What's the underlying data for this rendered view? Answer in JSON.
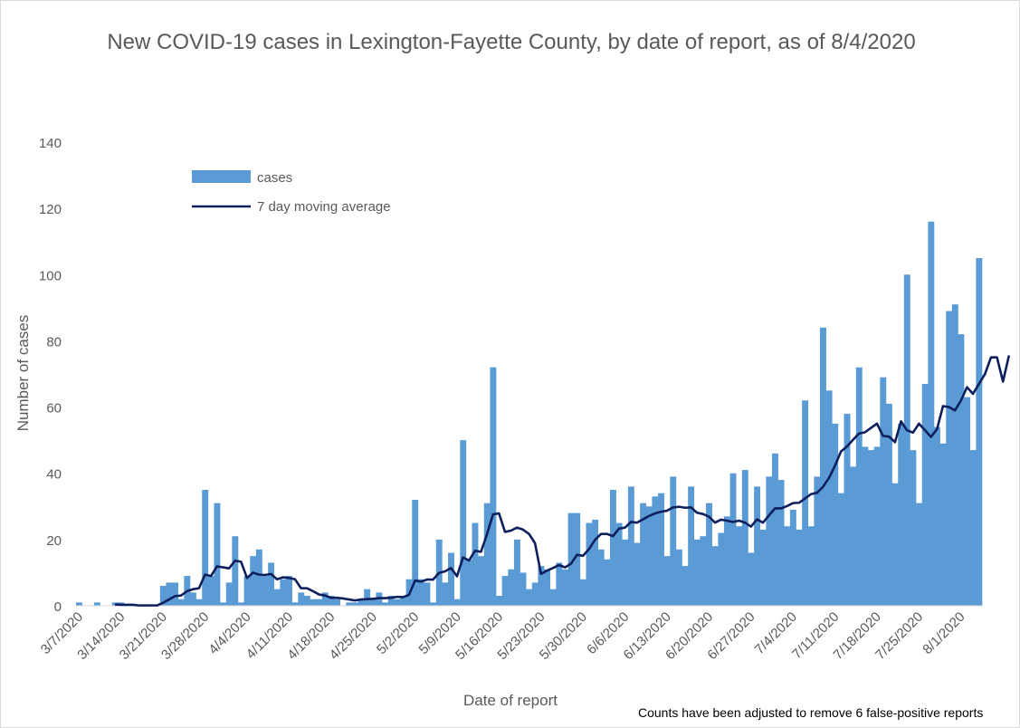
{
  "colors": {
    "bars": "#5b9bd5",
    "average": "#0d1f5c",
    "text": "#595959"
  },
  "chart_data": {
    "type": "bar",
    "title": "New COVID-19 cases in Lexington-Fayette County, by date of report, as of 8/4/2020",
    "xlabel": "Date of report",
    "ylabel": "Number of cases",
    "note": "Counts have been adjusted to remove 6 false-positive reports",
    "ylim": [
      0,
      140
    ],
    "yticks": [
      0,
      20,
      40,
      60,
      80,
      100,
      120,
      140
    ],
    "x_start": "3/7/2020",
    "xtick_labels": [
      "3/7/2020",
      "3/14/2020",
      "3/21/2020",
      "3/28/2020",
      "4/4/2020",
      "4/11/2020",
      "4/18/2020",
      "4/25/2020",
      "5/2/2020",
      "5/9/2020",
      "5/16/2020",
      "5/23/2020",
      "5/30/2020",
      "6/6/2020",
      "6/13/2020",
      "6/20/2020",
      "6/27/2020",
      "7/4/2020",
      "7/11/2020",
      "7/18/2020",
      "7/25/2020",
      "8/1/2020"
    ],
    "grid": false,
    "legend_position": "top-left",
    "series": [
      {
        "name": "cases",
        "type": "bar",
        "values": [
          1,
          0,
          0,
          1,
          0,
          0,
          1,
          1,
          0,
          0,
          0,
          0,
          0,
          0,
          6,
          7,
          7,
          2,
          9,
          4,
          2,
          35,
          9,
          31,
          1,
          7,
          21,
          1,
          9,
          15,
          17,
          9,
          13,
          5,
          8,
          9,
          1,
          4,
          3,
          2,
          2,
          4,
          3,
          2,
          0,
          1,
          1,
          2,
          5,
          2,
          4,
          1,
          3,
          2,
          3,
          8,
          32,
          8,
          7,
          1,
          20,
          7,
          16,
          2,
          50,
          14,
          25,
          15,
          31,
          72,
          3,
          9,
          11,
          20,
          10,
          5,
          7,
          12,
          11,
          5,
          13,
          11,
          28,
          28,
          8,
          25,
          26,
          17,
          14,
          35,
          25,
          20,
          36,
          19,
          31,
          30,
          33,
          34,
          15,
          39,
          17,
          12,
          36,
          20,
          21,
          31,
          18,
          22,
          27,
          40,
          24,
          41,
          16,
          36,
          23,
          39,
          46,
          38,
          24,
          29,
          23,
          62,
          24,
          39,
          84,
          65,
          55,
          34,
          58,
          42,
          72,
          48,
          47,
          48,
          69,
          61,
          37,
          55,
          100,
          47,
          31,
          67,
          116,
          54,
          49,
          89,
          91,
          82,
          63,
          47,
          105
        ]
      },
      {
        "name": "7 day moving average",
        "type": "line",
        "values": [
          null,
          null,
          null,
          null,
          null,
          null,
          0.4,
          0.3,
          0.3,
          0.3,
          0.1,
          0.1,
          0.1,
          0.1,
          0.9,
          1.9,
          2.9,
          3.1,
          4.4,
          5.0,
          5.3,
          9.4,
          9.0,
          11.9,
          11.6,
          11.3,
          13.6,
          13.3,
          8.4,
          10.0,
          9.4,
          9.3,
          9.6,
          8.0,
          8.6,
          8.4,
          8.0,
          5.3,
          5.3,
          4.4,
          3.4,
          3.1,
          2.4,
          2.4,
          2.2,
          1.9,
          1.6,
          1.9,
          2.0,
          2.1,
          2.3,
          2.3,
          2.4,
          2.7,
          2.6,
          3.3,
          7.6,
          7.3,
          7.9,
          7.9,
          9.9,
          10.4,
          11.4,
          8.9,
          14.6,
          13.7,
          16.6,
          16.3,
          21.6,
          27.6,
          27.9,
          22.3,
          22.7,
          23.6,
          23.0,
          21.7,
          18.9,
          9.6,
          10.6,
          11.4,
          12.3,
          11.6,
          12.7,
          15.4,
          15.1,
          17.1,
          19.9,
          21.7,
          21.7,
          21.0,
          23.3,
          23.6,
          25.3,
          25.1,
          26.1,
          27.1,
          27.9,
          28.4,
          28.7,
          29.7,
          29.9,
          29.6,
          29.7,
          28.1,
          27.7,
          26.9,
          25.1,
          26.0,
          25.7,
          25.3,
          25.7,
          25.1,
          23.9,
          26.1,
          25.1,
          27.3,
          29.4,
          29.4,
          30.1,
          31.0,
          31.1,
          32.4,
          33.7,
          34.1,
          35.9,
          38.6,
          42.3,
          46.6,
          48.1,
          50.1,
          52.0,
          52.4,
          53.7,
          55.0,
          51.3,
          51.1,
          49.4,
          55.7,
          53.0,
          52.3,
          55.0,
          53.0,
          51.0,
          53.3,
          60.3,
          60.0,
          59.0,
          62.0,
          66.0,
          64.0,
          67.0,
          70.0,
          75.0,
          75.0,
          67.7,
          75.6
        ]
      }
    ]
  }
}
